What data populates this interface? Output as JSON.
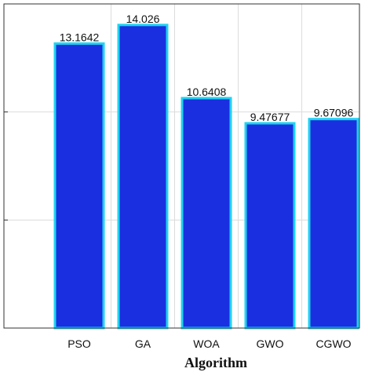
{
  "chart_data": {
    "type": "bar",
    "title": "",
    "xlabel": "Algorithm",
    "ylabel": "",
    "categories": [
      "PSO",
      "GA",
      "WOA",
      "GWO",
      "CGWO"
    ],
    "values": [
      13.1642,
      14.026,
      10.6408,
      9.47677,
      9.67096
    ],
    "data_labels": [
      "13.1642",
      "14.026",
      "10.6408",
      "9.47677",
      "9.67096"
    ],
    "ylim": [
      0,
      15
    ],
    "grid": true,
    "legend": "none",
    "colors": {
      "bar_fill": "#1a2fe0",
      "bar_edge": "#1fd3f0",
      "grid": "#dcdcdc",
      "axis": "#333333"
    }
  }
}
